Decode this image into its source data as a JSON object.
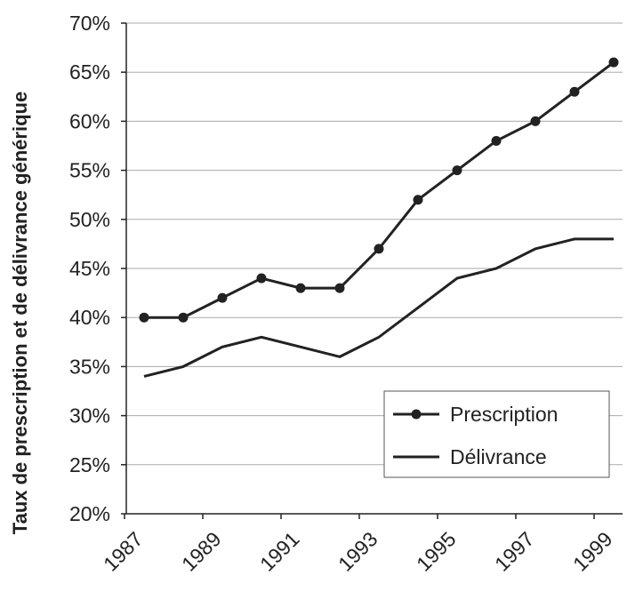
{
  "chart_data": {
    "type": "line",
    "ylabel": "Taux de prescription et de délivrance générique",
    "categories": [
      "1987",
      null,
      "1989",
      null,
      "1991",
      null,
      "1993",
      null,
      "1995",
      null,
      "1997",
      null,
      "1999"
    ],
    "series": [
      {
        "name": "Prescription",
        "color": "#222222",
        "marker": "circle",
        "values": [
          40,
          40,
          42,
          44,
          43,
          43,
          47,
          52,
          55,
          58,
          60,
          63,
          66
        ]
      },
      {
        "name": "Délivrance",
        "color": "#222222",
        "values": [
          34,
          35,
          37,
          38,
          37,
          36,
          38,
          41,
          44,
          45,
          47,
          48,
          48
        ]
      }
    ],
    "ylim": [
      20,
      70
    ],
    "yticks": [
      {
        "value": 20,
        "label": "20%"
      },
      {
        "value": 25,
        "label": "25%"
      },
      {
        "value": 30,
        "label": "30%"
      },
      {
        "value": 35,
        "label": "35%"
      },
      {
        "value": 40,
        "label": "40%"
      },
      {
        "value": 45,
        "label": "45%"
      },
      {
        "value": 50,
        "label": "50%"
      },
      {
        "value": 55,
        "label": "55%"
      },
      {
        "value": 60,
        "label": "60%"
      },
      {
        "value": 65,
        "label": "65%"
      },
      {
        "value": 70,
        "label": "70%"
      }
    ],
    "grid": true,
    "legend": "lower right"
  }
}
